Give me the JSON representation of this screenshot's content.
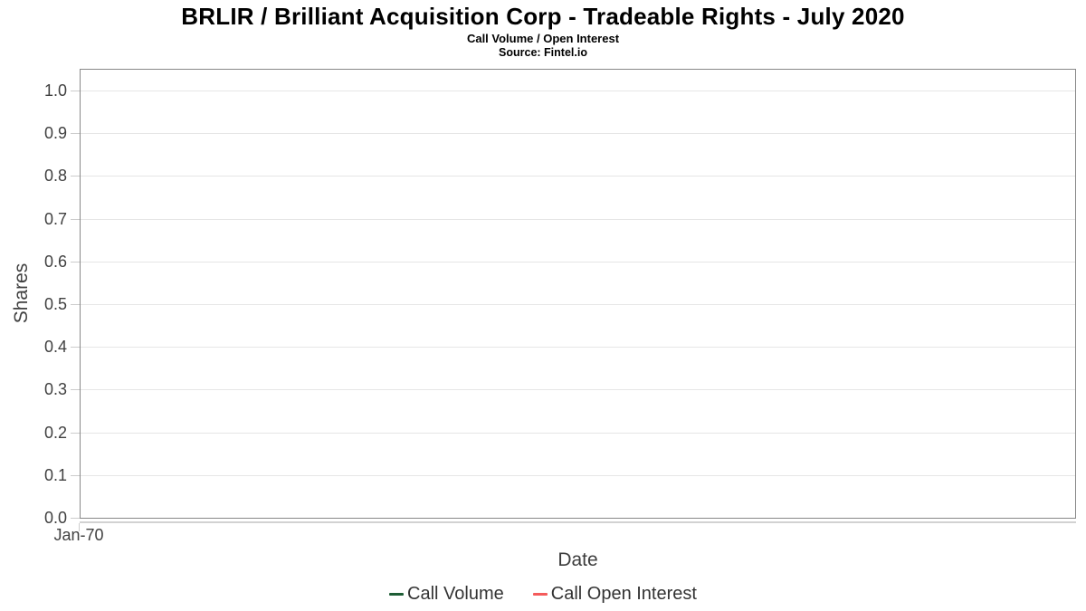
{
  "chart_data": {
    "type": "line",
    "title": "BRLIR / Brilliant Acquisition Corp - Tradeable Rights - July 2020",
    "subtitle": "Call Volume / Open Interest",
    "source": "Source: Fintel.io",
    "xlabel": "Date",
    "ylabel": "Shares",
    "ylim": [
      0.0,
      1.0
    ],
    "ytick_step": 0.1,
    "yticks": [
      "1.0",
      "0.9",
      "0.8",
      "0.7",
      "0.6",
      "0.5",
      "0.4",
      "0.3",
      "0.2",
      "0.1",
      "0.0"
    ],
    "xticks": [
      "Jan-70"
    ],
    "grid": "horizontal",
    "grid_color": "#e6e6e6",
    "plot_border_color": "#888888",
    "legend_position": "bottom-center",
    "series": [
      {
        "name": "Call Volume",
        "color": "#1d5d35",
        "x": [],
        "values": []
      },
      {
        "name": "Call Open Interest",
        "color": "#f45b5b",
        "x": [],
        "values": []
      }
    ]
  }
}
